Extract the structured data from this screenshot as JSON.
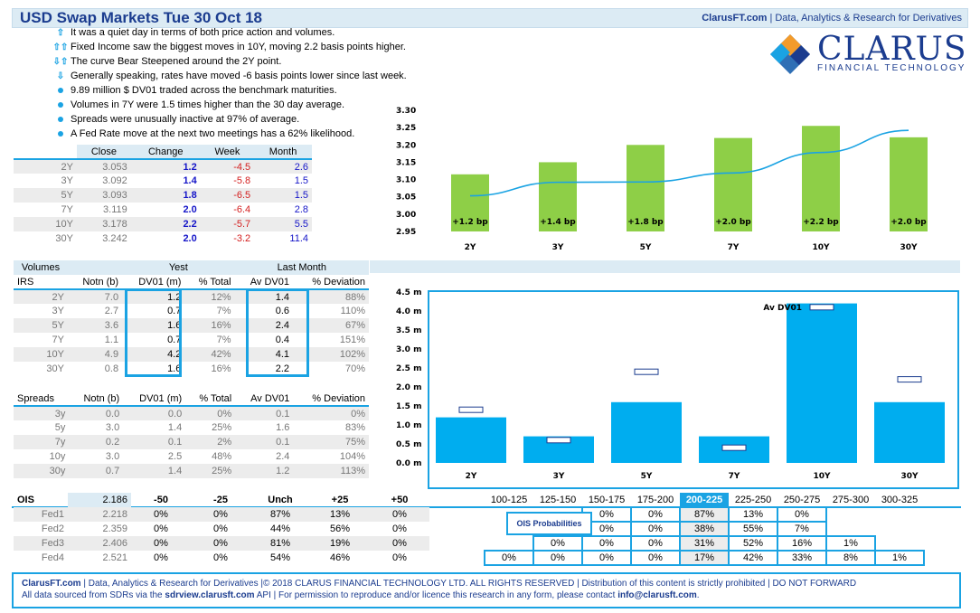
{
  "header": {
    "title": "USD Swap Markets Tue 30 Oct 18",
    "site": "ClarusFT.com",
    "tagline": "|  Data, Analytics & Research for Derivatives"
  },
  "logo": {
    "name": "CLARUS",
    "sub": "FINANCIAL TECHNOLOGY"
  },
  "bullets": [
    {
      "icon": "⇧",
      "text": "It was a quiet day in terms of both price action and volumes."
    },
    {
      "icon": "⇧⇧",
      "text": "Fixed Income saw the biggest moves in 10Y, moving 2.2 basis points higher."
    },
    {
      "icon": "⇩⇧",
      "text": "The curve Bear Steepened around the 2Y point."
    },
    {
      "icon": "⇩",
      "text": "Generally speaking, rates have moved -6 basis points lower since last week."
    },
    {
      "icon": "dot",
      "text": "9.89 million $ DV01 traded across the benchmark maturities."
    },
    {
      "icon": "dot",
      "text": "Volumes in 7Y were 1.5 times higher than the 30 day average."
    },
    {
      "icon": "dot",
      "text": "Spreads were unusually inactive at 97% of average."
    },
    {
      "icon": "dot",
      "text": "A Fed Rate move at the next two meetings has a 62% likelihood."
    }
  ],
  "rates": {
    "headers": [
      "Close",
      "Change",
      "Week",
      "Month"
    ],
    "rows": [
      [
        "2Y",
        "3.053",
        "1.2",
        "-4.5",
        "2.6"
      ],
      [
        "3Y",
        "3.092",
        "1.4",
        "-5.8",
        "1.5"
      ],
      [
        "5Y",
        "3.093",
        "1.8",
        "-6.5",
        "1.5"
      ],
      [
        "7Y",
        "3.119",
        "2.0",
        "-6.4",
        "2.8"
      ],
      [
        "10Y",
        "3.178",
        "2.2",
        "-5.7",
        "5.5"
      ],
      [
        "30Y",
        "3.242",
        "2.0",
        "-3.2",
        "11.4"
      ]
    ]
  },
  "chart_data": [
    {
      "type": "bar",
      "categories": [
        "2Y",
        "3Y",
        "5Y",
        "7Y",
        "10Y",
        "30Y"
      ],
      "values": [
        3.115,
        3.15,
        3.2,
        3.22,
        3.255,
        3.222
      ],
      "bar_labels": [
        "+1.2 bp",
        "+1.4 bp",
        "+1.8 bp",
        "+2.0 bp",
        "+2.2 bp",
        "+2.0 bp"
      ],
      "line": [
        3.053,
        3.092,
        3.093,
        3.119,
        3.178,
        3.242
      ],
      "yticks": [
        "3.30",
        "3.25",
        "3.20",
        "3.15",
        "3.10",
        "3.05",
        "3.00",
        "2.95"
      ],
      "ylim": [
        2.95,
        3.3
      ]
    },
    {
      "type": "bar",
      "categories": [
        "2Y",
        "3Y",
        "5Y",
        "7Y",
        "10Y",
        "30Y"
      ],
      "values": [
        1.2,
        0.7,
        1.6,
        0.7,
        4.2,
        1.6
      ],
      "markers": [
        1.4,
        0.6,
        2.4,
        0.4,
        4.1,
        2.2
      ],
      "marker_label": "Av DV01",
      "yticks": [
        "4.5 m",
        "4.0 m",
        "3.5 m",
        "3.0 m",
        "2.5 m",
        "2.0 m",
        "1.5 m",
        "1.0 m",
        "0.5 m",
        "0.0 m"
      ],
      "ylim": [
        0,
        4.5
      ]
    }
  ],
  "volumes": {
    "title": "Volumes",
    "yest": "Yest",
    "lastmonth": "Last Month",
    "cols": [
      "IRS",
      "Notn (b)",
      "DV01 (m)",
      "% Total",
      "Av DV01",
      "% Deviation"
    ],
    "rows": [
      [
        "2Y",
        "7.0",
        "1.2",
        "12%",
        "1.4",
        "88%"
      ],
      [
        "3Y",
        "2.7",
        "0.7",
        "7%",
        "0.6",
        "110%"
      ],
      [
        "5Y",
        "3.6",
        "1.6",
        "16%",
        "2.4",
        "67%"
      ],
      [
        "7Y",
        "1.1",
        "0.7",
        "7%",
        "0.4",
        "151%"
      ],
      [
        "10Y",
        "4.9",
        "4.2",
        "42%",
        "4.1",
        "102%"
      ],
      [
        "30Y",
        "0.8",
        "1.6",
        "16%",
        "2.2",
        "70%"
      ]
    ]
  },
  "spreads": {
    "cols": [
      "Spreads",
      "Notn (b)",
      "DV01 (m)",
      "% Total",
      "Av DV01",
      "% Deviation"
    ],
    "rows": [
      [
        "3y",
        "0.0",
        "0.0",
        "0%",
        "0.1",
        "0%"
      ],
      [
        "5y",
        "3.0",
        "1.4",
        "25%",
        "1.6",
        "83%"
      ],
      [
        "7y",
        "0.2",
        "0.1",
        "2%",
        "0.1",
        "75%"
      ],
      [
        "10y",
        "3.0",
        "2.5",
        "48%",
        "2.4",
        "104%"
      ],
      [
        "30y",
        "0.7",
        "1.4",
        "25%",
        "1.2",
        "113%"
      ]
    ]
  },
  "ois": {
    "label": "OIS",
    "value": "2.186",
    "cols": [
      "-50",
      "-25",
      "Unch",
      "+25",
      "+50"
    ],
    "rows": [
      [
        "Fed1",
        "2.218",
        "0%",
        "0%",
        "87%",
        "13%",
        "0%"
      ],
      [
        "Fed2",
        "2.359",
        "0%",
        "0%",
        "44%",
        "56%",
        "0%"
      ],
      [
        "Fed3",
        "2.406",
        "0%",
        "0%",
        "81%",
        "19%",
        "0%"
      ],
      [
        "Fed4",
        "2.521",
        "0%",
        "0%",
        "54%",
        "46%",
        "0%"
      ]
    ]
  },
  "probs": {
    "label": "OIS Probabilities",
    "cols": [
      "100-125",
      "125-150",
      "150-175",
      "175-200",
      "200-225",
      "225-250",
      "250-275",
      "275-300",
      "300-325"
    ],
    "rows": [
      [
        "",
        "",
        "0%",
        "0%",
        "87%",
        "13%",
        "0%",
        "",
        ""
      ],
      [
        "",
        "",
        "0%",
        "0%",
        "38%",
        "55%",
        "7%",
        "",
        ""
      ],
      [
        "",
        "0%",
        "0%",
        "0%",
        "31%",
        "52%",
        "16%",
        "1%",
        ""
      ],
      [
        "0%",
        "0%",
        "0%",
        "0%",
        "17%",
        "42%",
        "33%",
        "8%",
        "1%"
      ]
    ]
  },
  "footer": {
    "line1a": "ClarusFT.com",
    "line1b": " | Data, Analytics & Research for Derivatives  |© 2018 CLARUS FINANCIAL TECHNOLOGY LTD. ALL RIGHTS RESERVED | Distribution of this content  is strictly prohibited | DO NOT FORWARD",
    "line2a": "All data sourced from SDRs via the ",
    "line2b": "sdrview.clarusft.com",
    "line2c": " API | For permission to reproduce and/or licence this research in any form, please contact ",
    "line2d": "info@clarusft.com",
    "line2e": "."
  }
}
